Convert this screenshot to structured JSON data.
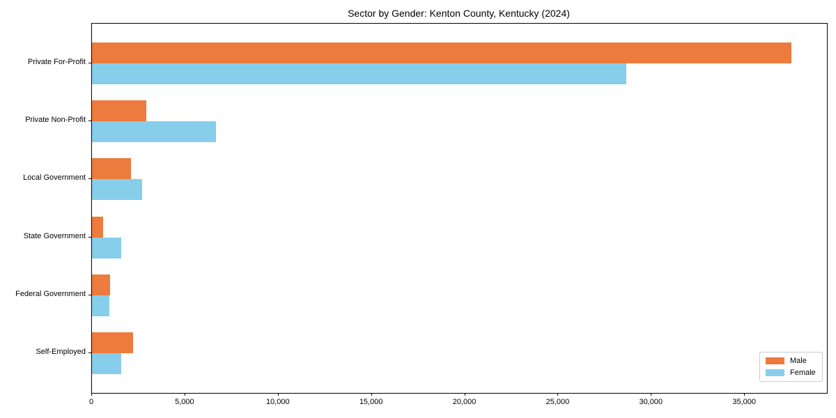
{
  "chart_data": {
    "type": "bar",
    "orientation": "horizontal",
    "title": "Sector by Gender: Kenton County, Kentucky (2024)",
    "categories": [
      "Private For-Profit",
      "Private Non-Profit",
      "Local Government",
      "State Government",
      "Federal Government",
      "Self-Employed"
    ],
    "series": [
      {
        "name": "Male",
        "color": "#ec7b3d",
        "values": [
          37500,
          2900,
          2090,
          600,
          970,
          2200
        ]
      },
      {
        "name": "Female",
        "color": "#87ceeb",
        "values": [
          28650,
          6650,
          2690,
          1570,
          950,
          1570
        ]
      }
    ],
    "xlabel": "",
    "ylabel": "",
    "xlim": [
      0,
      39400
    ],
    "xticks": [
      0,
      5000,
      10000,
      15000,
      20000,
      25000,
      30000,
      35000
    ],
    "xtick_labels": [
      "0",
      "5,000",
      "10,000",
      "15,000",
      "20,000",
      "25,000",
      "30,000",
      "35,000"
    ],
    "grid": false,
    "legend": {
      "position": "lower right",
      "entries": [
        "Male",
        "Female"
      ]
    },
    "frame_color": "#000000",
    "background_color": "#ffffff"
  }
}
